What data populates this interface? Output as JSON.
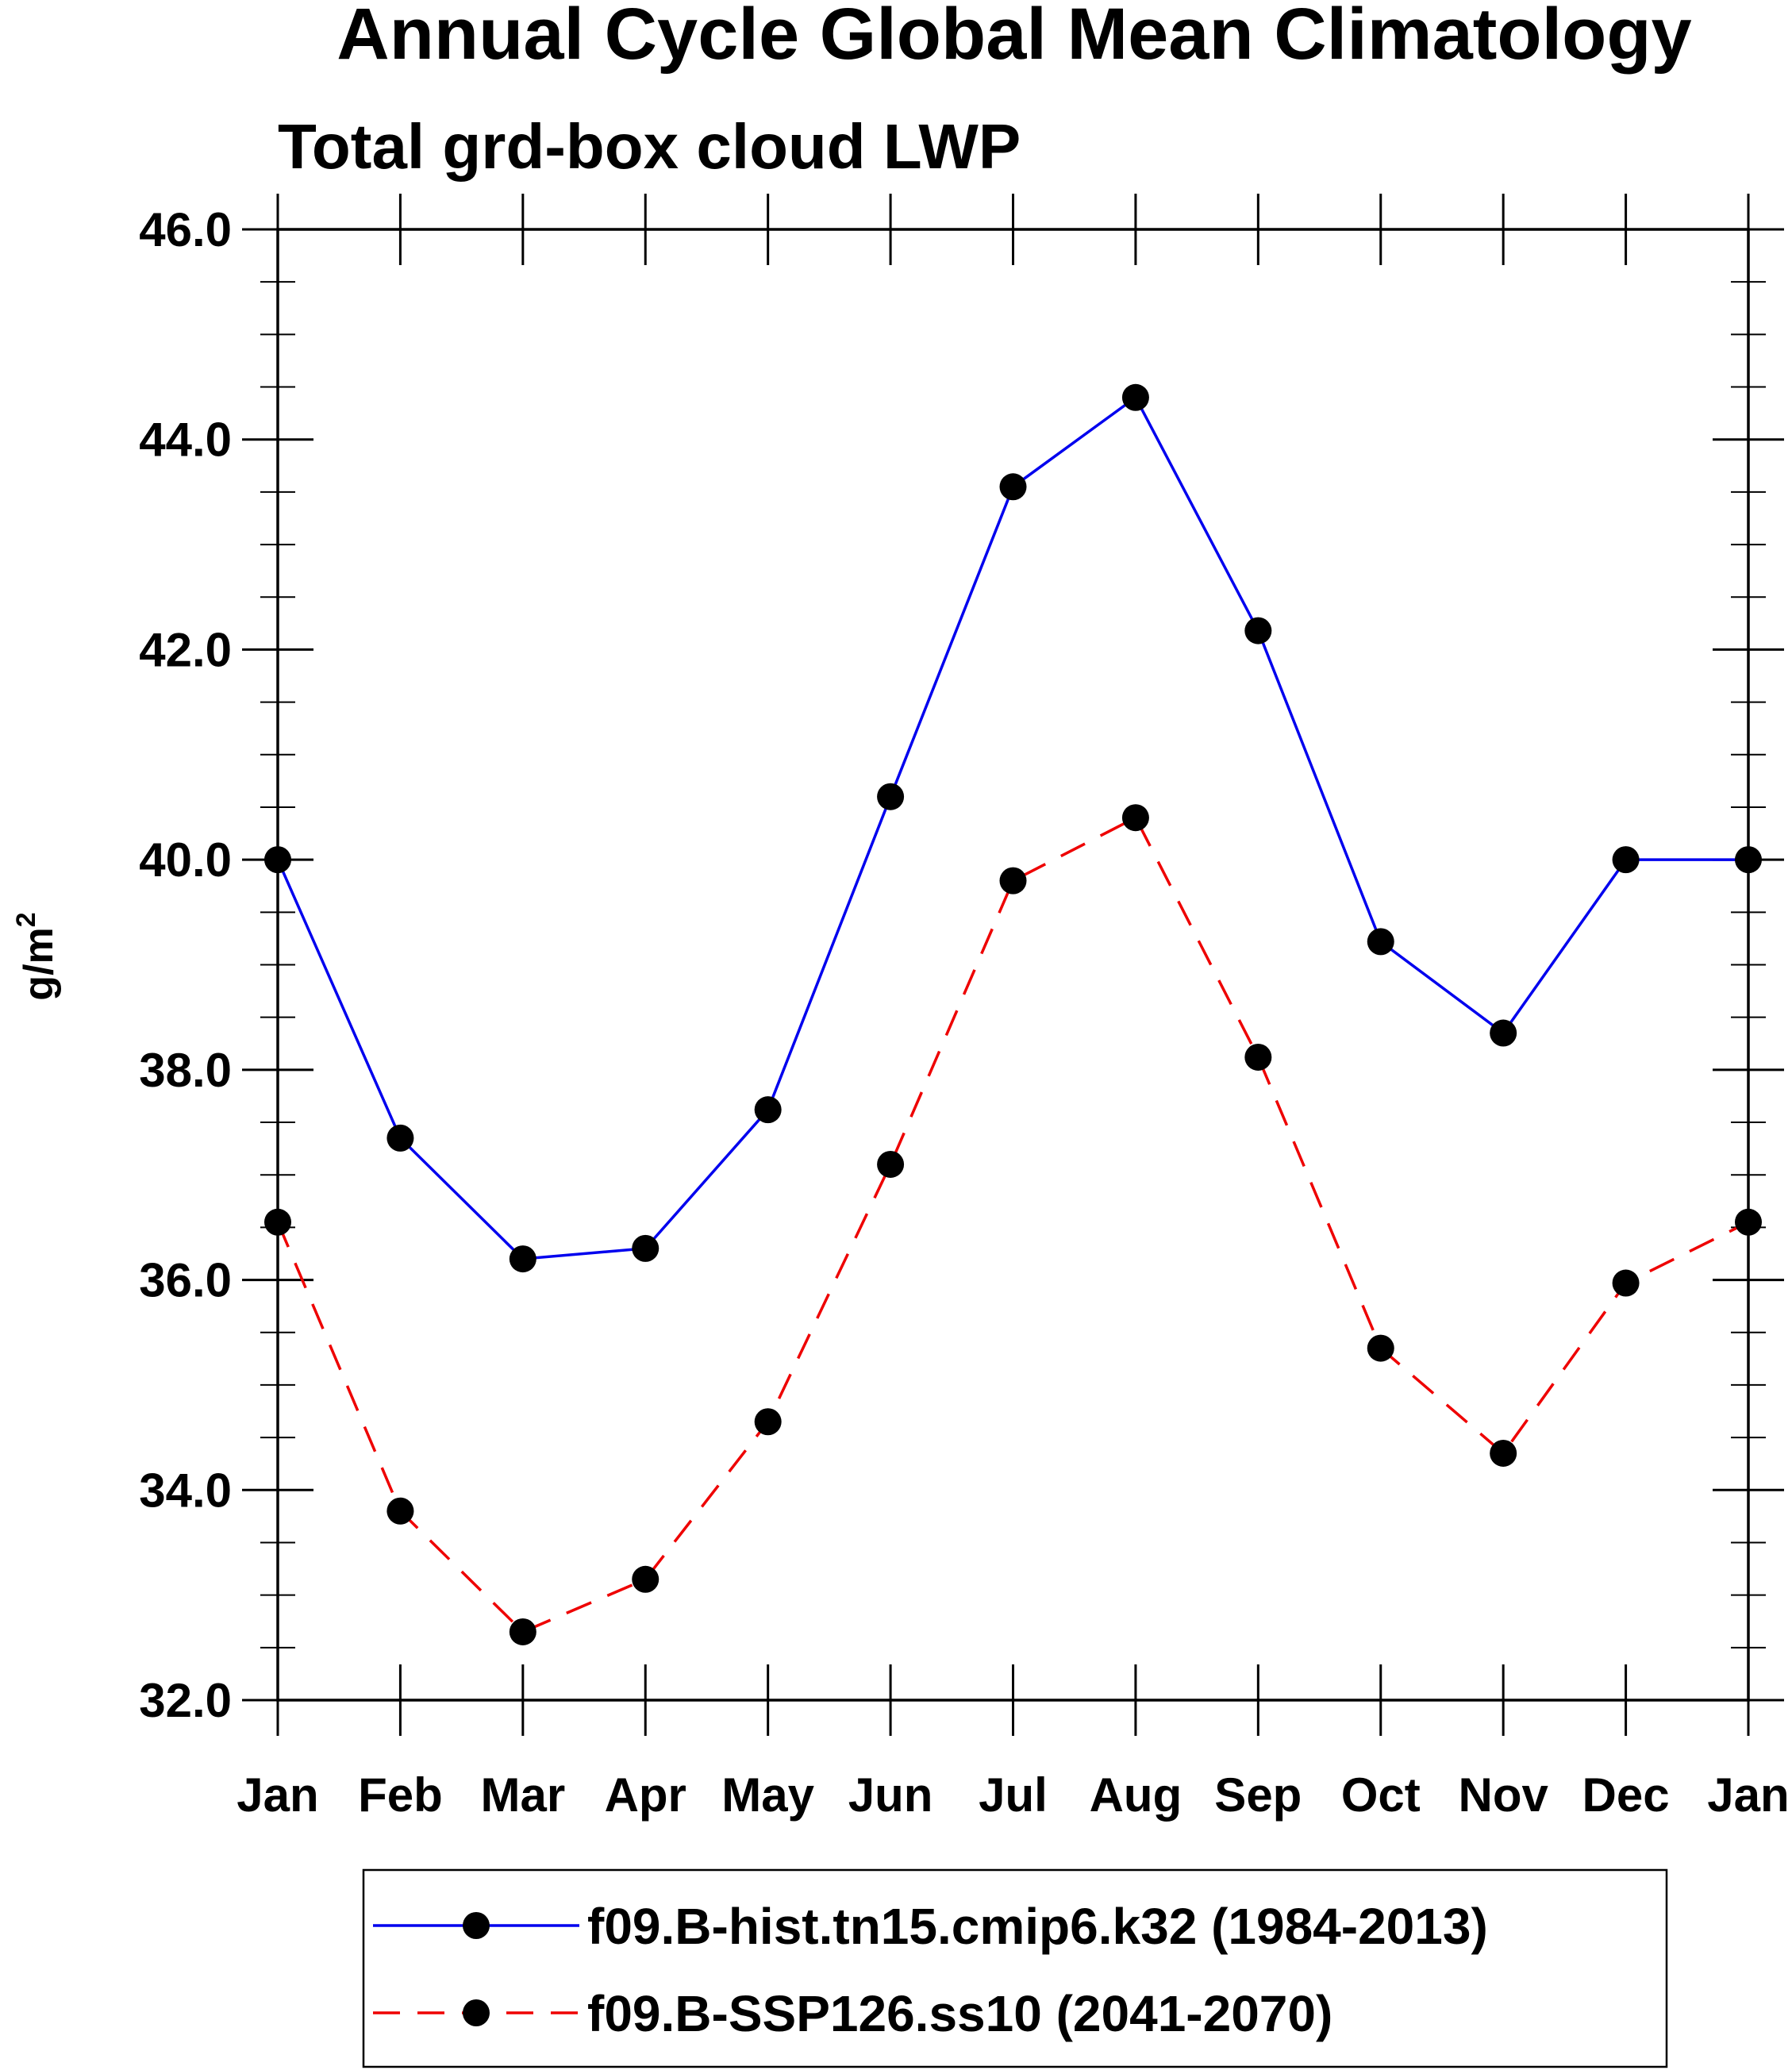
{
  "chart_data": {
    "type": "line",
    "title": "Annual Cycle Global Mean Climatology",
    "subtitle": "Total grd-box cloud LWP",
    "ylabel": "g/m",
    "ylabel_superscript": "2",
    "xlabel": "",
    "categories": [
      "Jan",
      "Feb",
      "Mar",
      "Apr",
      "May",
      "Jun",
      "Jul",
      "Aug",
      "Sep",
      "Oct",
      "Nov",
      "Dec",
      "Jan"
    ],
    "yticks": [
      "32.0",
      "34.0",
      "36.0",
      "38.0",
      "40.0",
      "42.0",
      "44.0",
      "46.0"
    ],
    "ylim": [
      32,
      46
    ],
    "grid": false,
    "legend_placement": "bottom",
    "series": [
      {
        "name": "f09.B-hist.tn15.cmip6.k32 (1984-2013)",
        "color": "#0000ee",
        "dash": "solid",
        "marker": "filled-circle",
        "values": [
          40.0,
          37.35,
          36.2,
          36.3,
          37.62,
          40.6,
          43.55,
          44.4,
          42.18,
          39.22,
          38.35,
          40.0,
          40.0
        ]
      },
      {
        "name": "f09.B-SSP126.ss10 (2041-2070)",
        "color": "#ee0000",
        "dash": "dashed",
        "marker": "filled-circle",
        "values": [
          36.55,
          33.8,
          32.65,
          33.15,
          34.65,
          37.1,
          39.8,
          40.4,
          38.12,
          35.35,
          34.35,
          35.97,
          36.55
        ]
      }
    ]
  }
}
